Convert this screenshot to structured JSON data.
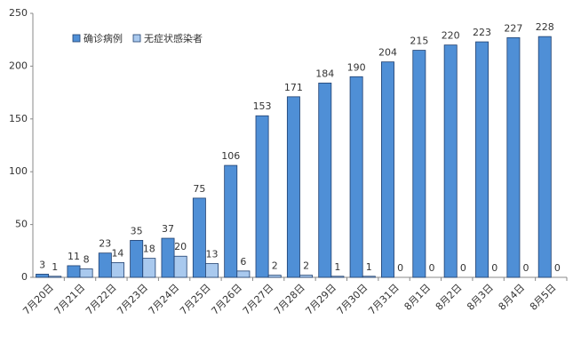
{
  "chart_data": {
    "type": "bar",
    "categories": [
      "7月20日",
      "7月21日",
      "7月22日",
      "7月23日",
      "7月24日",
      "7月25日",
      "7月26日",
      "7月27日",
      "7月28日",
      "7月29日",
      "7月30日",
      "7月31日",
      "8月1日",
      "8月2日",
      "8月3日",
      "8月4日",
      "8月5日"
    ],
    "series": [
      {
        "name": "确诊病例",
        "color": "#4f8fd6",
        "values": [
          3,
          11,
          23,
          35,
          37,
          75,
          106,
          153,
          171,
          184,
          190,
          204,
          215,
          220,
          223,
          227,
          228
        ]
      },
      {
        "name": "无症状感染者",
        "color": "#a9c9ee",
        "values": [
          1,
          8,
          14,
          18,
          20,
          13,
          6,
          2,
          2,
          1,
          1,
          0,
          0,
          0,
          0,
          0,
          0
        ]
      }
    ],
    "ylim": [
      0,
      250
    ],
    "yticks": [
      0,
      50,
      100,
      150,
      200,
      250
    ],
    "grid": false,
    "legend": "top-left"
  }
}
